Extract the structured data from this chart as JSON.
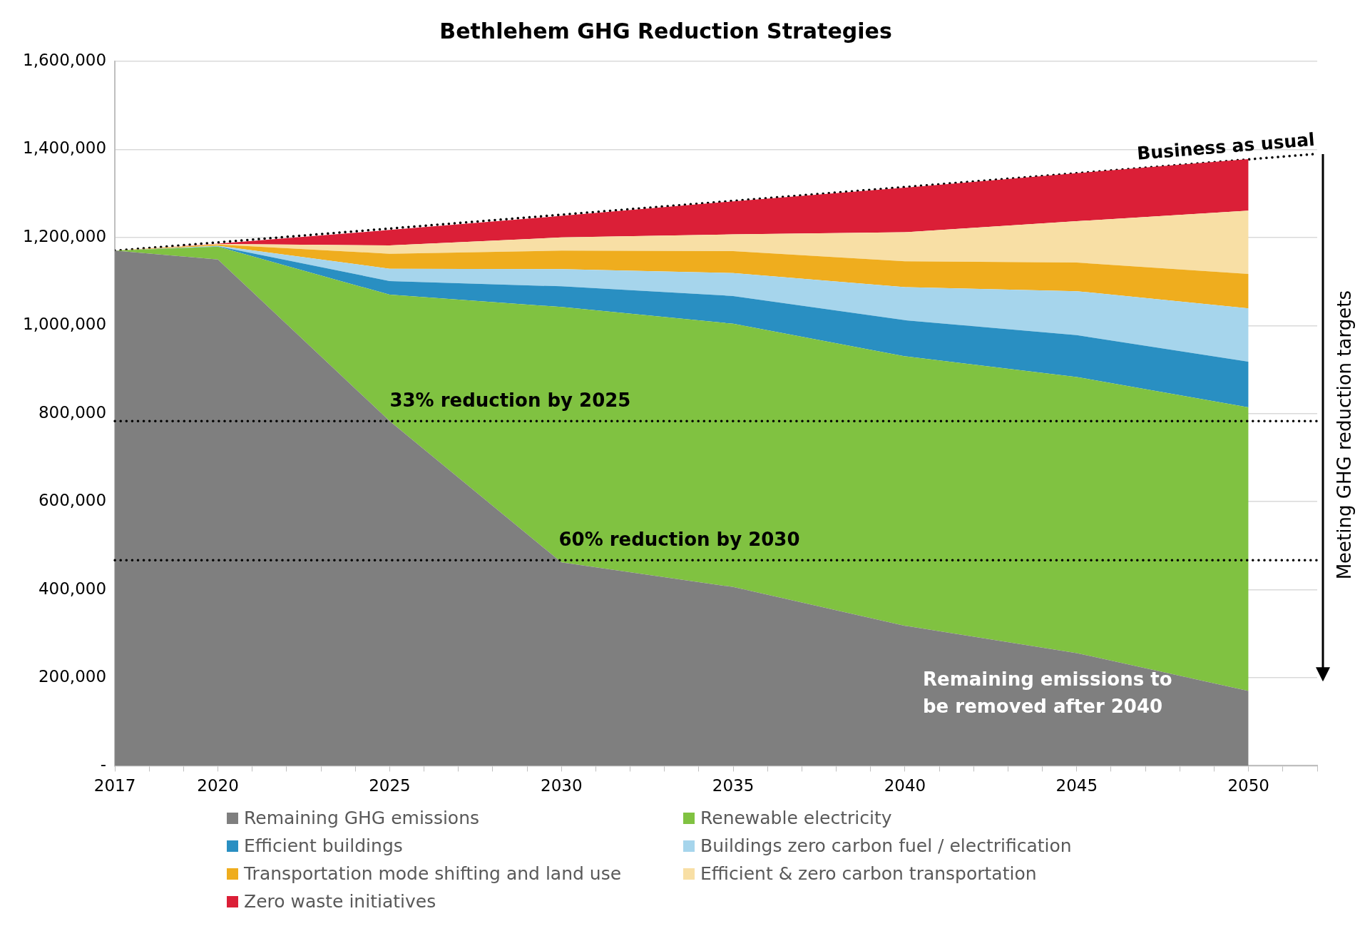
{
  "chart_data": {
    "type": "area",
    "title": "Bethlehem GHG Reduction Strategies",
    "stacked": true,
    "x": [
      2017,
      2020,
      2025,
      2030,
      2035,
      2040,
      2045,
      2050
    ],
    "xlim": [
      2017,
      2052
    ],
    "xticks": [
      2017,
      {
        "value": 2018,
        "label": null
      },
      {
        "value": 2019,
        "label": null
      },
      2020,
      {
        "value": 2021,
        "label": null
      },
      {
        "value": 2022,
        "label": null
      },
      {
        "value": 2023,
        "label": null
      },
      {
        "value": 2024,
        "label": null
      },
      2025,
      {
        "value": 2026,
        "label": null
      },
      {
        "value": 2027,
        "label": null
      },
      {
        "value": 2028,
        "label": null
      },
      {
        "value": 2029,
        "label": null
      },
      2030,
      {
        "value": 2031,
        "label": null
      },
      {
        "value": 2032,
        "label": null
      },
      {
        "value": 2033,
        "label": null
      },
      {
        "value": 2034,
        "label": null
      },
      2035,
      {
        "value": 2036,
        "label": null
      },
      {
        "value": 2037,
        "label": null
      },
      {
        "value": 2038,
        "label": null
      },
      {
        "value": 2039,
        "label": null
      },
      2040,
      {
        "value": 2041,
        "label": null
      },
      {
        "value": 2042,
        "label": null
      },
      {
        "value": 2043,
        "label": null
      },
      {
        "value": 2044,
        "label": null
      },
      2045,
      {
        "value": 2046,
        "label": null
      },
      {
        "value": 2047,
        "label": null
      },
      {
        "value": 2048,
        "label": null
      },
      {
        "value": 2049,
        "label": null
      },
      2050,
      {
        "value": 2051,
        "label": null
      },
      {
        "value": 2052,
        "label": null
      }
    ],
    "ylim": [
      0,
      1600000
    ],
    "yticks": [
      {
        "value": 0,
        "label": "-"
      },
      {
        "value": 200000,
        "label": "200,000"
      },
      {
        "value": 400000,
        "label": "400,000"
      },
      {
        "value": 600000,
        "label": "600,000"
      },
      {
        "value": 800000,
        "label": "800,000"
      },
      {
        "value": 1000000,
        "label": "1,000,000"
      },
      {
        "value": 1200000,
        "label": "1,200,000"
      },
      {
        "value": 1400000,
        "label": "1,400,000"
      },
      {
        "value": 1600000,
        "label": "1,600,000"
      }
    ],
    "grid": "y",
    "legend": "bottom",
    "series": [
      {
        "name": "Remaining GHG emissions",
        "color": "#7f7f7f",
        "values": [
          1170000,
          1150000,
          783000,
          462000,
          406000,
          318000,
          256000,
          170000
        ]
      },
      {
        "name": "Renewable electricity",
        "color": "#80c241",
        "values": [
          0,
          29000,
          287000,
          580000,
          598000,
          612000,
          627000,
          644000
        ]
      },
      {
        "name": "Efficient buildings",
        "color": "#298fc2",
        "values": [
          0,
          1000,
          31000,
          47000,
          63000,
          82000,
          95000,
          104000
        ]
      },
      {
        "name": "Buildings zero carbon fuel / electrification",
        "color": "#a6d5ec",
        "values": [
          0,
          1000,
          28000,
          39000,
          52000,
          75000,
          100000,
          121000
        ]
      },
      {
        "name": "Transportation mode shifting and land use",
        "color": "#efad1e",
        "values": [
          0,
          3000,
          34000,
          42000,
          50000,
          59000,
          65000,
          78000
        ]
      },
      {
        "name": "Efficient & zero carbon transportation",
        "color": "#f8dfa5",
        "values": [
          0,
          1000,
          19000,
          30000,
          38000,
          66000,
          94000,
          144000
        ]
      },
      {
        "name": "Zero waste initiatives",
        "color": "#db1f37",
        "values": [
          0,
          1000,
          35000,
          49000,
          75000,
          101000,
          109000,
          117000
        ]
      },
      {
        "name": "Business as usual",
        "type": "line",
        "line_style": "dotted",
        "color": "#000000",
        "x": [
          2017,
          2052
        ],
        "values": [
          1170000,
          1390000
        ]
      }
    ],
    "ref_lines": [
      {
        "axis": "y",
        "value": 783000,
        "label": "33% reduction by 2025",
        "color": "#000000",
        "line_style": "dotted"
      },
      {
        "axis": "y",
        "value": 467000,
        "label": "60% reduction by 2030",
        "color": "#000000",
        "line_style": "dotted"
      }
    ],
    "annotations": [
      "Remaining emissions to be removed after 2040",
      "Meeting GHG reduction targets"
    ]
  }
}
